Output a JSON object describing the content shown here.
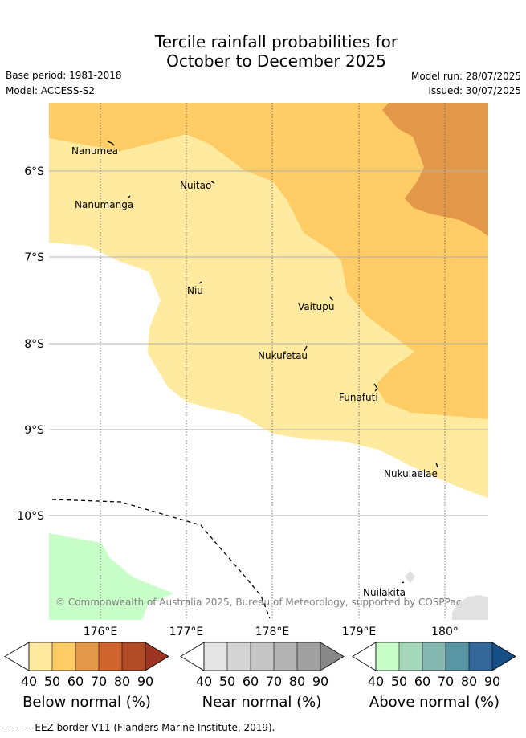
{
  "header": {
    "title_line1": "Tercile rainfall probabilities for",
    "title_line2": "October to December 2025",
    "base_period": "Base period: 1981-2018",
    "model": "Model: ACCESS-S2",
    "model_run": "Model run: 28/07/2025",
    "issued": "Issued: 30/07/2025"
  },
  "map": {
    "lat_labels": [
      "6°S",
      "7°S",
      "8°S",
      "9°S",
      "10°S"
    ],
    "lon_labels": [
      "176°E",
      "177°E",
      "178°E",
      "179°E",
      "180°"
    ],
    "places": [
      "Nanumea",
      "Nuitao",
      "Nanumanga",
      "Niu",
      "Vaitupu",
      "Nukufetau",
      "Funafuti",
      "Nukulaelae",
      "Nuilakita"
    ],
    "copyright": "© Commonwealth of Australia 2025, Bureau of Meteorology, supported by COSPPac",
    "colors": {
      "below_40_50": "#ffeaa0",
      "below_50_60": "#ffcc66",
      "below_60_70": "#e39748",
      "above_40_50": "#c8ffc8",
      "land": "#e1e1e1"
    }
  },
  "colorbars": [
    {
      "title": "Below normal (%)",
      "ticks": [
        "40",
        "50",
        "60",
        "70",
        "80",
        "90"
      ],
      "colors": [
        "#ffeaa0",
        "#ffcc66",
        "#e39748",
        "#d0652f",
        "#b24b27",
        "#9c3522"
      ]
    },
    {
      "title": "Near normal (%)",
      "ticks": [
        "40",
        "50",
        "60",
        "70",
        "80",
        "90"
      ],
      "colors": [
        "#e5e5e5",
        "#d4d4d4",
        "#c5c5c5",
        "#b3b3b3",
        "#a0a0a0",
        "#888888"
      ]
    },
    {
      "title": "Above normal (%)",
      "ticks": [
        "40",
        "50",
        "60",
        "70",
        "80",
        "90"
      ],
      "colors": [
        "#c8ffc8",
        "#a6d8bc",
        "#84b8b0",
        "#5a95a3",
        "#34689b",
        "#164f86"
      ]
    }
  ],
  "footnote": "--  --  -- EEZ border V11 (Flanders Marine Institute, 2019)."
}
